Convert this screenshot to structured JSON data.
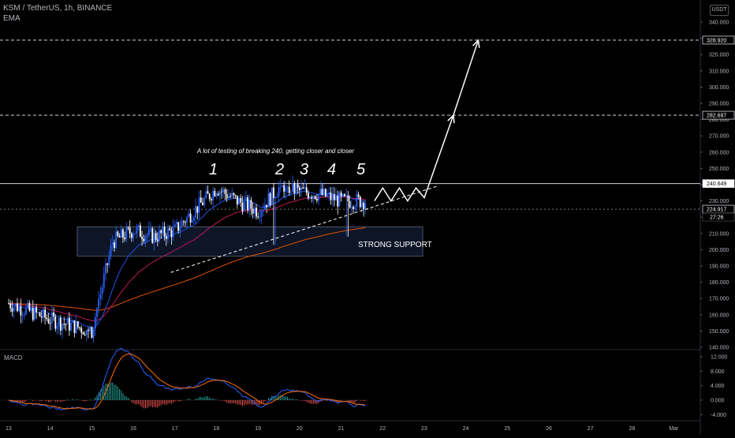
{
  "header": {
    "symbol_line": "KSM / TetherUS, 1h, BINANCE",
    "indicator": "EMA",
    "currency_badge": "USDT"
  },
  "annotations": {
    "testing_note": "A lot of testing of breaking 240, getting closer and closer",
    "touch_labels": [
      "1",
      "2",
      "3",
      "4",
      "5"
    ],
    "support_label": "STRONG SUPPORT",
    "countdown": "27:26"
  },
  "macd_panel": {
    "title": "MACD",
    "ticks": [
      "12.000",
      "8.000",
      "4.000",
      "0.000",
      "-4.000"
    ]
  },
  "chart_data": {
    "type": "candlestick",
    "title": "KSM / TetherUS, 1h, BINANCE",
    "y_ticks": [
      "340.000",
      "330.000",
      "320.000",
      "310.000",
      "300.000",
      "290.000",
      "280.000",
      "270.000",
      "260.000",
      "250.000",
      "240.000",
      "230.000",
      "220.000",
      "210.000",
      "200.000",
      "190.000",
      "180.000",
      "170.000",
      "160.000",
      "150.000",
      "140.000"
    ],
    "ylim": [
      140,
      340
    ],
    "x_ticks": [
      "13",
      "14",
      "15",
      "16",
      "17",
      "18",
      "19",
      "20",
      "21",
      "22",
      "23",
      "24",
      "25",
      "26",
      "27",
      "28",
      "Mar"
    ],
    "price_levels": [
      {
        "label": "328.920",
        "value": 328.92,
        "style": "dashed"
      },
      {
        "label": "282.697",
        "value": 282.697,
        "style": "dashed"
      },
      {
        "label": "240.649",
        "value": 240.649,
        "style": "solid"
      },
      {
        "label": "224.917",
        "value": 224.917,
        "style": "dotted"
      }
    ],
    "approx_close_path": [
      {
        "date": "13",
        "price": 167
      },
      {
        "date": "14",
        "price": 157
      },
      {
        "date": "15",
        "price": 150
      },
      {
        "date": "15.5",
        "price": 205
      },
      {
        "date": "16",
        "price": 212
      },
      {
        "date": "16.5",
        "price": 208
      },
      {
        "date": "17",
        "price": 212
      },
      {
        "date": "17.5",
        "price": 225
      },
      {
        "date": "18",
        "price": 238
      },
      {
        "date": "18.5",
        "price": 230
      },
      {
        "date": "19",
        "price": 224
      },
      {
        "date": "19.5",
        "price": 238
      },
      {
        "date": "20",
        "price": 236
      },
      {
        "date": "20.5",
        "price": 234
      },
      {
        "date": "21",
        "price": 230
      },
      {
        "date": "21.5",
        "price": 230
      }
    ],
    "projection": [
      {
        "date": "21.8",
        "price": 230
      },
      {
        "date": "22",
        "price": 238
      },
      {
        "date": "22.2",
        "price": 230
      },
      {
        "date": "22.4",
        "price": 238
      },
      {
        "date": "22.6",
        "price": 230
      },
      {
        "date": "22.8",
        "price": 238
      },
      {
        "date": "23",
        "price": 232
      },
      {
        "date": "23.7",
        "price": 282.697
      },
      {
        "date": "24.3",
        "price": 328.92
      }
    ],
    "colors": {
      "bull": "#2962ff",
      "bear": "#ffffff",
      "ema_fast": "#1e53e5",
      "ema_mid": "#c2185b",
      "ema_slow": "#e65100",
      "macd": "#2962ff",
      "signal": "#ff6d00",
      "hist_pos": "#26a69a",
      "hist_neg": "#ef5350"
    },
    "grid": false
  }
}
